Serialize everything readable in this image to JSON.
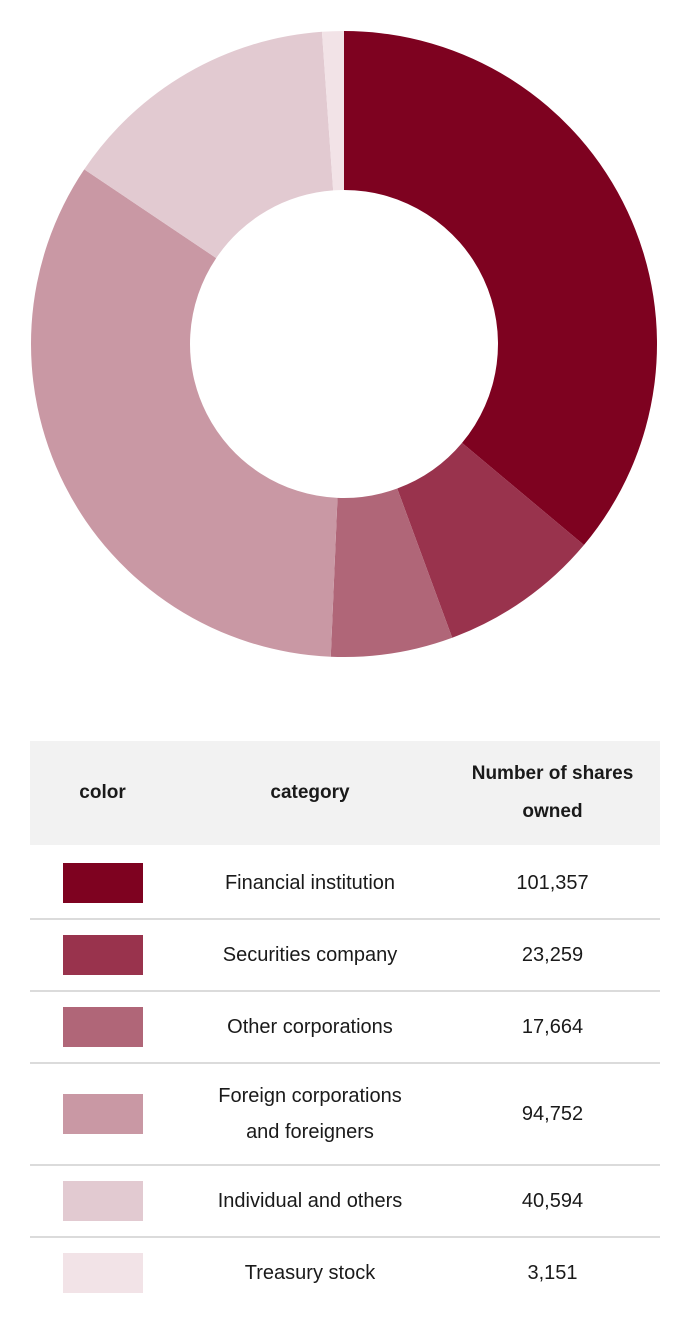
{
  "chart_data": {
    "type": "pie",
    "subtype": "donut",
    "title": "",
    "categories": [
      "Financial institution",
      "Securities company",
      "Other corporations",
      "Foreign corporations and foreigners",
      "Individual and others",
      "Treasury stock"
    ],
    "values": [
      101357,
      23259,
      17664,
      94752,
      40594,
      3151
    ],
    "colors": [
      "#7E0220",
      "#99334D",
      "#B06678",
      "#C998A4",
      "#E2CAD1",
      "#F2E3E7"
    ],
    "start_angle_deg": 0,
    "direction": "clockwise",
    "inner_radius_ratio": 0.492,
    "legend_position": "table-below",
    "grid": false
  },
  "table": {
    "headers": [
      "color",
      "category",
      "Number of shares owned"
    ],
    "rows": [
      {
        "color": "#7E0220",
        "category": "Financial institution",
        "shares": "101,357"
      },
      {
        "color": "#99334D",
        "category": "Securities company",
        "shares": "23,259"
      },
      {
        "color": "#B06678",
        "category": "Other corporations",
        "shares": "17,664"
      },
      {
        "color": "#C998A4",
        "category": "Foreign corporations and foreigners",
        "shares": "94,752"
      },
      {
        "color": "#E2CAD1",
        "category": "Individual and others",
        "shares": "40,594"
      },
      {
        "color": "#F2E3E7",
        "category": "Treasury stock",
        "shares": "3,151"
      }
    ]
  },
  "style": {
    "header_bg": "#f2f2f2",
    "divider_color": "#dbdbdb",
    "text_color": "#1a1a1a",
    "background": "#ffffff"
  }
}
